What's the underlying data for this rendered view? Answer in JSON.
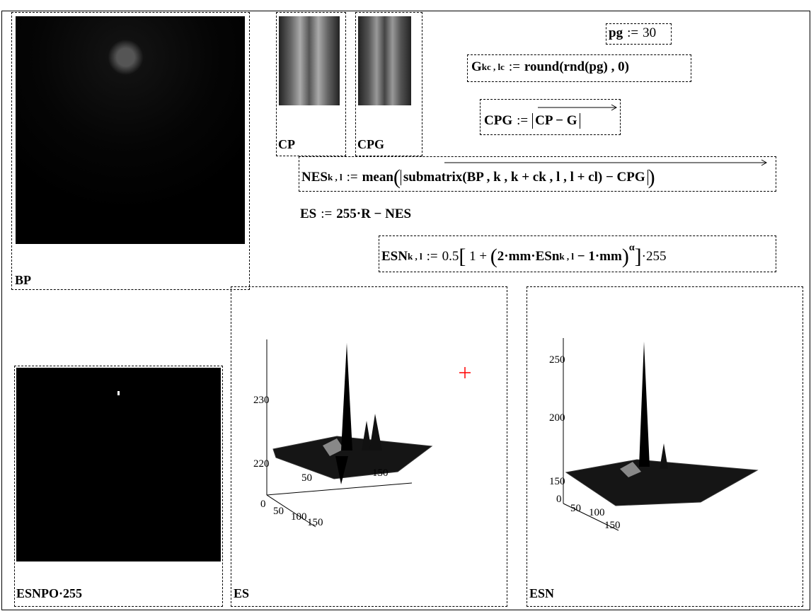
{
  "worksheet": {
    "images": [
      {
        "label": "BP"
      },
      {
        "label": "CP"
      },
      {
        "label": "CPG"
      },
      {
        "label": "ESNPO·255"
      }
    ],
    "equations": {
      "pg": [
        "pg",
        ":=",
        "30"
      ],
      "g": [
        "G",
        "kc , lc",
        ":=",
        "round(rnd(pg) , 0)"
      ],
      "cpg": [
        "CPG",
        ":=",
        "CP − G"
      ],
      "nes": [
        "NES",
        "k , l",
        ":=",
        "mean",
        "submatrix(BP , k , k + ck , l , l + cl) − CPG"
      ],
      "es": [
        "ES",
        ":=",
        "255·R − NES"
      ],
      "esn": [
        "ESN",
        "k , l",
        ":=",
        "0.5",
        "1 + ",
        "2·mm·ESn",
        "k , l",
        " − 1·mm",
        "α",
        "·255"
      ]
    },
    "plots": [
      {
        "label": "ES",
        "z_ticks": [
          "230",
          "220"
        ],
        "x_ticks": [
          "50",
          "150"
        ],
        "y_ticks": [
          "0",
          "50",
          "100",
          "150"
        ]
      },
      {
        "label": "ESN",
        "z_ticks": [
          "250",
          "200",
          "150"
        ],
        "y_ticks": [
          "0",
          "50",
          "100",
          "150"
        ]
      }
    ]
  }
}
